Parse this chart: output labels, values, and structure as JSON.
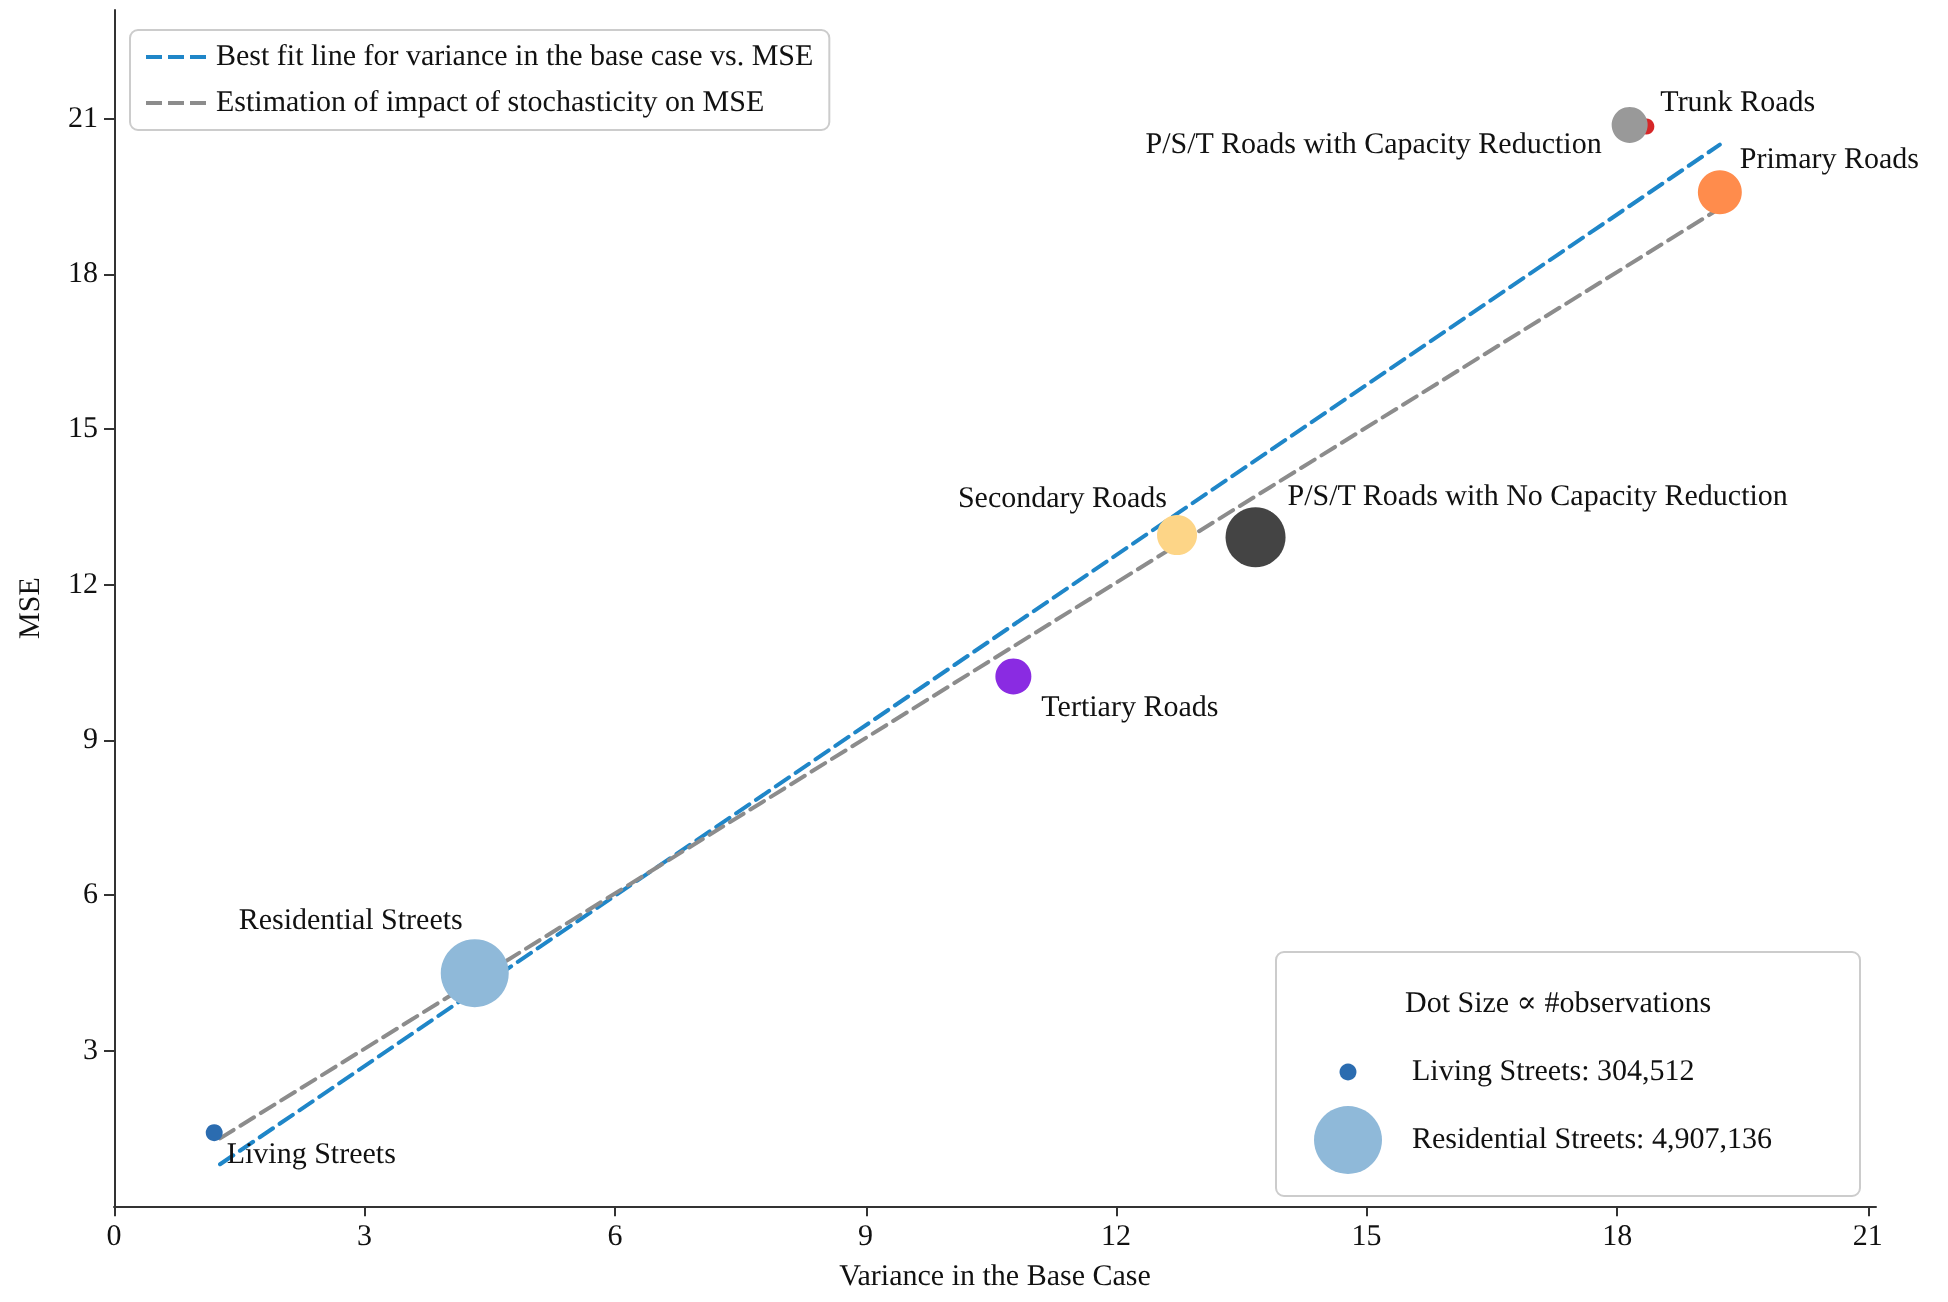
{
  "chart_data": {
    "type": "bubble",
    "xlabel": "Variance in the Base Case",
    "ylabel": "MSE",
    "xlim": [
      0,
      21.1
    ],
    "ylim": [
      0,
      23.1
    ],
    "xticks": [
      0,
      3,
      6,
      9,
      12,
      15,
      18,
      21
    ],
    "yticks": [
      3,
      6,
      9,
      12,
      15,
      18,
      21
    ],
    "grid": false,
    "legend": "top left",
    "legend_title": "Dot Size ∝ #observations",
    "size_legend": [
      {
        "value": 304512,
        "label": "Living Streets: 304,512"
      },
      {
        "value": 4907136,
        "label": "Residential Streets: 4,907,136"
      }
    ],
    "series": [
      {
        "type": "line",
        "name": "Best fit line for variance in the base case vs. MSE",
        "color": "#1f86c8",
        "x": [
          1.27,
          19.23
        ],
        "values": [
          0.81,
          20.5
        ],
        "line_style": "dashed",
        "marker": "none"
      },
      {
        "type": "line",
        "name": "Estimation of impact of stochasticity on MSE",
        "color": "#8c8c8c",
        "x": [
          1.27,
          19.23
        ],
        "values": [
          1.31,
          19.27
        ],
        "line_style": "dashed",
        "marker": "none"
      },
      {
        "name": "Living Streets",
        "color": "#2b6cb0",
        "x": [
          1.2
        ],
        "values": [
          1.42
        ],
        "sizes": [
          304512
        ]
      },
      {
        "name": "Residential Streets",
        "color": "#8fb9d9",
        "x": [
          4.32
        ],
        "values": [
          4.5
        ],
        "sizes": [
          4907136
        ]
      },
      {
        "name": "Tertiary Roads",
        "color": "#8a2be2",
        "x": [
          10.77
        ],
        "values": [
          10.23
        ],
        "sizes": [
          1375000
        ]
      },
      {
        "name": "Secondary Roads",
        "color": "#fdd587",
        "x": [
          12.73
        ],
        "values": [
          12.96
        ],
        "sizes": [
          1700000
        ]
      },
      {
        "name": "P/S/T Roads with No Capacity Reduction",
        "color": "#444444",
        "x": [
          13.67
        ],
        "values": [
          12.92
        ],
        "sizes": [
          3820000
        ]
      },
      {
        "name": "Trunk Roads",
        "color": "#d62728",
        "x": [
          18.35
        ],
        "values": [
          20.85
        ],
        "sizes": [
          272000
        ]
      },
      {
        "name": "P/S/T Roads with Capacity Reduction",
        "color": "#999999",
        "x": [
          18.15
        ],
        "values": [
          20.88
        ],
        "sizes": [
          1375000
        ]
      },
      {
        "name": "Primary Roads",
        "color": "#ff8c4c",
        "x": [
          19.23
        ],
        "values": [
          19.58
        ],
        "sizes": [
          2050000
        ]
      }
    ]
  }
}
